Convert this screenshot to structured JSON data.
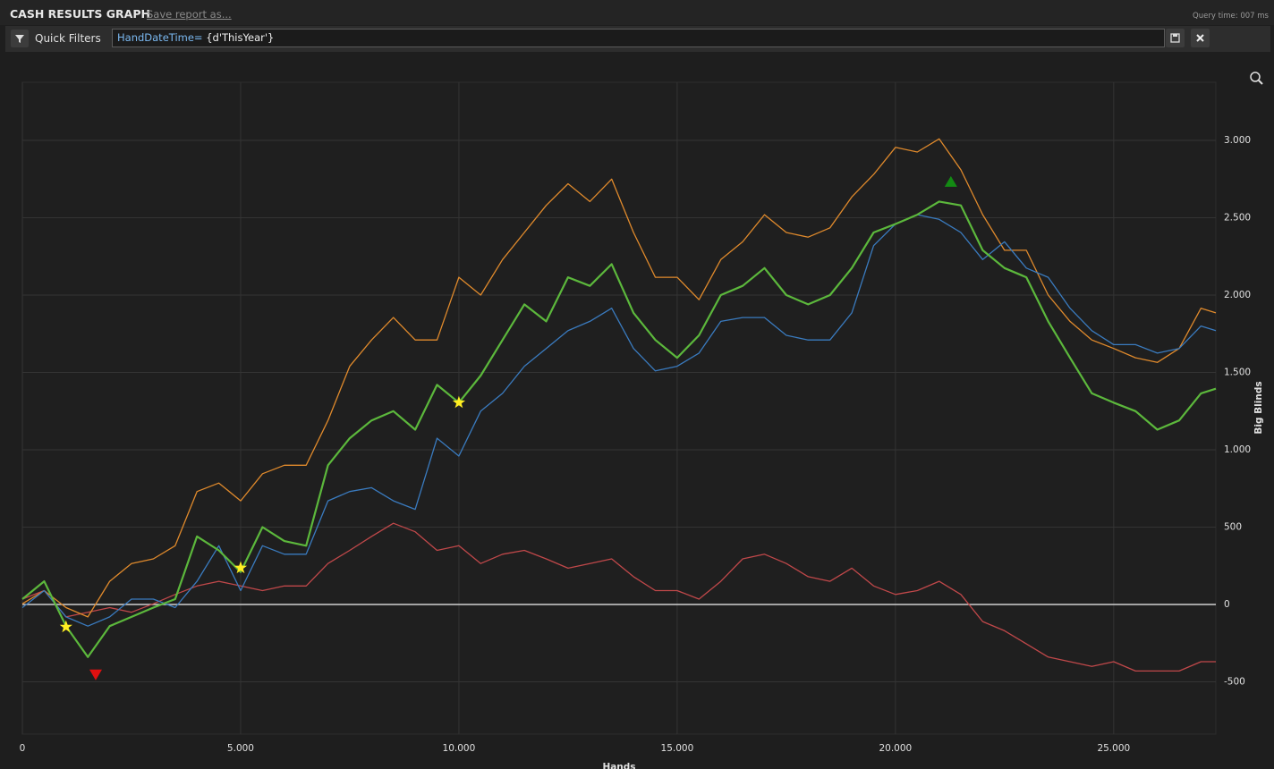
{
  "header": {
    "title": "CASH RESULTS GRAPH",
    "save_link": "Save report as...",
    "query_time": "Query time: 007 ms"
  },
  "filter": {
    "label": "Quick Filters",
    "field": "HandDateTime=",
    "value": "{d'ThisYear'}"
  },
  "chart_data": {
    "type": "line",
    "x_label": "Hands",
    "y_label": "Big Blinds",
    "x": [
      0,
      500,
      1000,
      1500,
      2000,
      2500,
      3000,
      3500,
      4000,
      4500,
      5000,
      5500,
      6000,
      6500,
      7000,
      7500,
      8000,
      8500,
      9000,
      9500,
      10000,
      10500,
      11000,
      11500,
      12000,
      12500,
      13000,
      13500,
      14000,
      14500,
      15000,
      15500,
      16000,
      16500,
      17000,
      17500,
      18000,
      18500,
      19000,
      19500,
      20000,
      20500,
      21000,
      21500,
      22000,
      22500,
      23000,
      23500,
      24000,
      24500,
      25000,
      25500,
      26000,
      26500,
      27000,
      27340
    ],
    "series": [
      {
        "color": "#c0484a",
        "width": 1.3,
        "values": [
          35,
          90,
          -80,
          -50,
          -20,
          -50,
          5,
          65,
          120,
          150,
          120,
          90,
          120,
          120,
          265,
          350,
          440,
          525,
          470,
          350,
          380,
          265,
          325,
          350,
          295,
          235,
          265,
          295,
          180,
          90,
          90,
          35,
          150,
          295,
          325,
          265,
          180,
          150,
          235,
          120,
          65,
          90,
          150,
          65,
          -110,
          -170,
          -255,
          -340,
          -370,
          -400,
          -370,
          -430,
          -430,
          -430,
          -370,
          -370
        ]
      },
      {
        "color": "#e08a2c",
        "width": 1.3,
        "values": [
          5,
          90,
          -20,
          -80,
          150,
          265,
          295,
          380,
          730,
          785,
          670,
          845,
          900,
          900,
          1190,
          1540,
          1710,
          1855,
          1710,
          1710,
          2115,
          2000,
          2230,
          2405,
          2580,
          2720,
          2605,
          2750,
          2405,
          2115,
          2115,
          1970,
          2230,
          2345,
          2520,
          2405,
          2375,
          2435,
          2635,
          2780,
          2955,
          2925,
          3010,
          2810,
          2520,
          2290,
          2290,
          2000,
          1830,
          1710,
          1655,
          1595,
          1565,
          1655,
          1915,
          1885
        ]
      },
      {
        "color": "#3a7bbf",
        "width": 1.3,
        "values": [
          -20,
          90,
          -80,
          -140,
          -80,
          35,
          35,
          -20,
          150,
          380,
          90,
          380,
          325,
          325,
          670,
          730,
          755,
          670,
          615,
          1075,
          960,
          1250,
          1365,
          1540,
          1655,
          1770,
          1830,
          1915,
          1655,
          1510,
          1540,
          1625,
          1830,
          1855,
          1855,
          1740,
          1710,
          1710,
          1885,
          2320,
          2460,
          2520,
          2490,
          2405,
          2230,
          2345,
          2175,
          2115,
          1915,
          1770,
          1680,
          1680,
          1625,
          1655,
          1800,
          1770
        ]
      },
      {
        "color": "#5cb83c",
        "width": 2.2,
        "values": [
          35,
          150,
          -140,
          -340,
          -140,
          -80,
          -20,
          35,
          440,
          350,
          210,
          500,
          410,
          380,
          900,
          1075,
          1190,
          1250,
          1130,
          1420,
          1305,
          1480,
          1710,
          1940,
          1830,
          2115,
          2060,
          2200,
          1885,
          1710,
          1595,
          1740,
          2000,
          2060,
          2175,
          2000,
          1940,
          2000,
          2175,
          2405,
          2460,
          2520,
          2605,
          2580,
          2290,
          2175,
          2115,
          1830,
          1595,
          1365,
          1305,
          1250,
          1130,
          1190,
          1365,
          1395
        ]
      }
    ],
    "markers": [
      {
        "shape": "star",
        "color": "#ffee22",
        "x": 1000,
        "y": -145
      },
      {
        "shape": "star",
        "color": "#ffee22",
        "x": 5000,
        "y": 237
      },
      {
        "shape": "star",
        "color": "#ffee22",
        "x": 10000,
        "y": 1305
      },
      {
        "shape": "triangle-down",
        "color": "#e01010",
        "x": 1680,
        "y": -455
      },
      {
        "shape": "triangle-up",
        "color": "#138a13",
        "x": 21270,
        "y": 2735
      }
    ],
    "xlim": [
      0,
      27340
    ],
    "ylim": [
      -838,
      3376
    ],
    "xticks": [
      0,
      {
        "value": 5000,
        "label": "5.000"
      },
      {
        "value": 10000,
        "label": "10.000"
      },
      {
        "value": 15000,
        "label": "15.000"
      },
      {
        "value": 20000,
        "label": "20.000"
      },
      {
        "value": 25000,
        "label": "25.000"
      }
    ],
    "yticks": [
      -500,
      0,
      500,
      {
        "value": 1000,
        "label": "1.000"
      },
      {
        "value": 1500,
        "label": "1.500"
      },
      {
        "value": 2000,
        "label": "2.000"
      },
      {
        "value": 2500,
        "label": "2.500"
      },
      {
        "value": 3000,
        "label": "3.000"
      }
    ],
    "grid": true
  }
}
